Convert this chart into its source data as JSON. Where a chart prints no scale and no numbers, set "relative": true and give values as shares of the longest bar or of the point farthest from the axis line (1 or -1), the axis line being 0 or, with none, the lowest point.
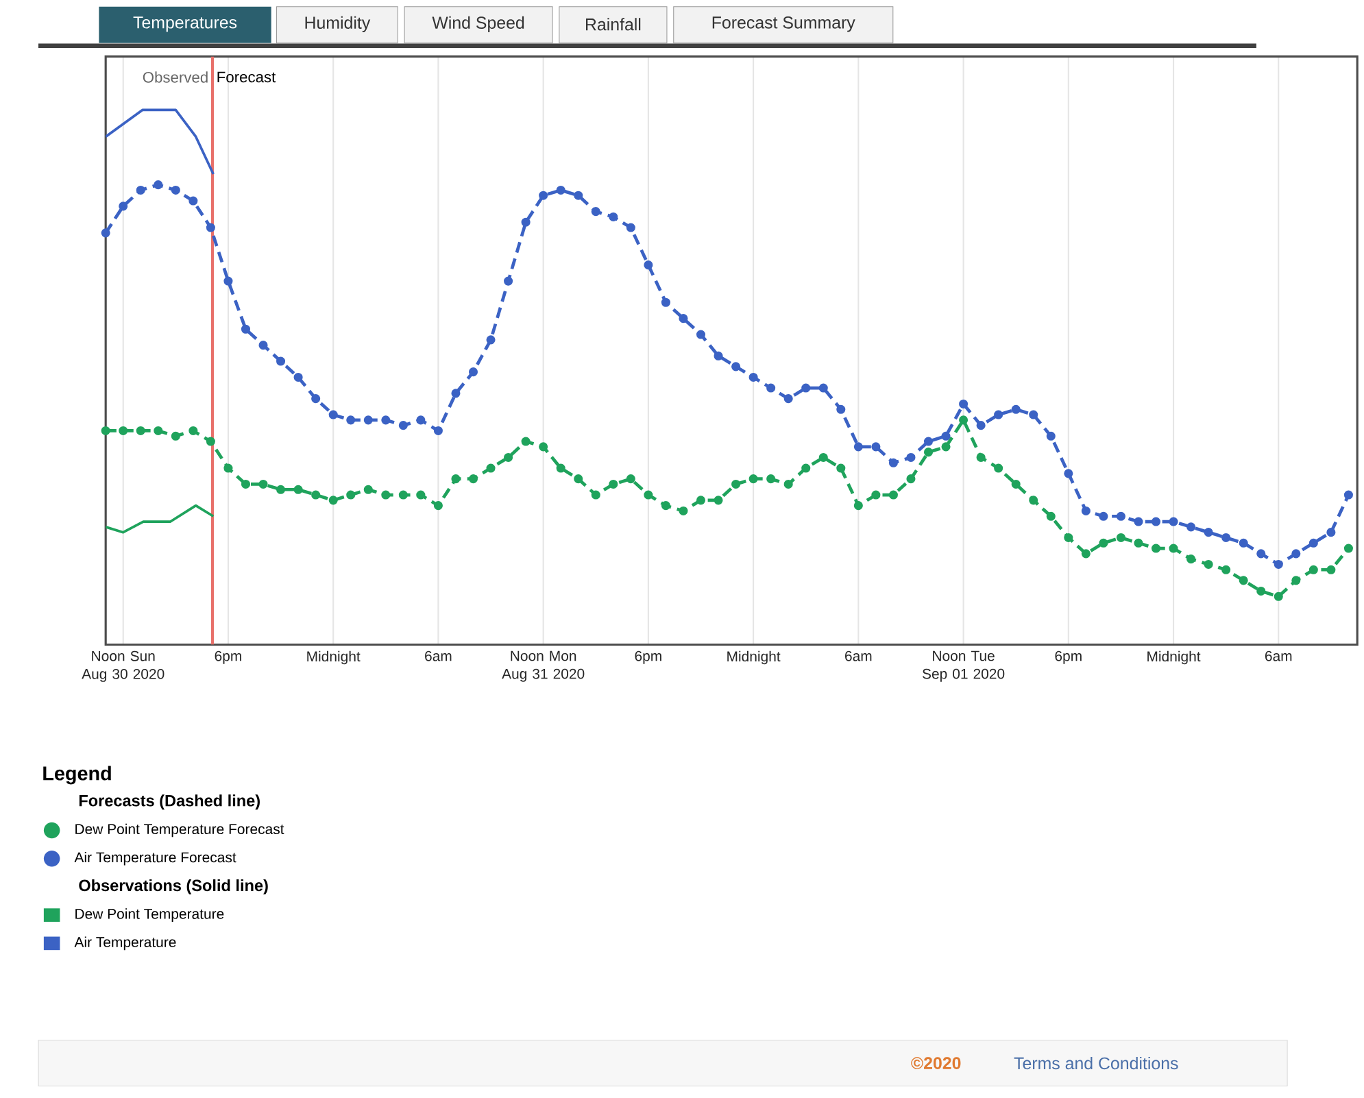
{
  "chart_data": {
    "type": "line",
    "relative": true,
    "x": [
      "2020-08-30T11:00",
      "2020-08-30T12:00",
      "2020-08-30T13:00",
      "2020-08-30T14:00",
      "2020-08-30T15:00",
      "2020-08-30T16:00",
      "2020-08-30T17:00",
      "2020-08-30T18:00",
      "2020-08-30T19:00",
      "2020-08-30T20:00",
      "2020-08-30T21:00",
      "2020-08-30T22:00",
      "2020-08-30T23:00",
      "2020-08-31T00:00",
      "2020-08-31T01:00",
      "2020-08-31T02:00",
      "2020-08-31T03:00",
      "2020-08-31T04:00",
      "2020-08-31T05:00",
      "2020-08-31T06:00",
      "2020-08-31T07:00",
      "2020-08-31T08:00",
      "2020-08-31T09:00",
      "2020-08-31T10:00",
      "2020-08-31T11:00",
      "2020-08-31T12:00",
      "2020-08-31T13:00",
      "2020-08-31T14:00",
      "2020-08-31T15:00",
      "2020-08-31T16:00",
      "2020-08-31T17:00",
      "2020-08-31T18:00",
      "2020-08-31T19:00",
      "2020-08-31T20:00",
      "2020-08-31T21:00",
      "2020-08-31T22:00",
      "2020-08-31T23:00",
      "2020-09-01T00:00",
      "2020-09-01T01:00",
      "2020-09-01T02:00",
      "2020-09-01T03:00",
      "2020-09-01T04:00",
      "2020-09-01T05:00",
      "2020-09-01T06:00",
      "2020-09-01T07:00",
      "2020-09-01T08:00",
      "2020-09-01T09:00",
      "2020-09-01T10:00",
      "2020-09-01T11:00",
      "2020-09-01T12:00",
      "2020-09-01T13:00",
      "2020-09-01T14:00",
      "2020-09-01T15:00",
      "2020-09-01T16:00",
      "2020-09-01T17:00",
      "2020-09-01T18:00",
      "2020-09-01T19:00",
      "2020-09-01T20:00",
      "2020-09-01T21:00",
      "2020-09-01T22:00",
      "2020-09-01T23:00",
      "2020-09-02T00:00",
      "2020-09-02T01:00",
      "2020-09-02T02:00",
      "2020-09-02T03:00",
      "2020-09-02T04:00",
      "2020-09-02T05:00",
      "2020-09-02T06:00",
      "2020-09-02T07:00",
      "2020-09-02T08:00",
      "2020-09-02T09:00",
      "2020-09-02T10:00"
    ],
    "xlim": [
      "2020-08-30T11:00",
      "2020-09-02T10:30"
    ],
    "xticks": [
      {
        "value": "2020-08-30T12:00",
        "label": "Noon Sun Aug 30 2020"
      },
      {
        "value": "2020-08-30T18:00",
        "label": "6pm"
      },
      {
        "value": "2020-08-31T00:00",
        "label": "Midnight"
      },
      {
        "value": "2020-08-31T06:00",
        "label": "6am"
      },
      {
        "value": "2020-08-31T12:00",
        "label": "Noon Mon Aug 31 2020"
      },
      {
        "value": "2020-08-31T18:00",
        "label": "6pm"
      },
      {
        "value": "2020-09-01T00:00",
        "label": "Midnight"
      },
      {
        "value": "2020-09-01T06:00",
        "label": "6am"
      },
      {
        "value": "2020-09-01T12:00",
        "label": "Noon Tue Sep 01 2020"
      },
      {
        "value": "2020-09-01T18:00",
        "label": "6pm"
      },
      {
        "value": "2020-09-02T00:00",
        "label": "Midnight"
      },
      {
        "value": "2020-09-02T06:00",
        "label": "6am"
      }
    ],
    "grid": "x",
    "legend": "bottom left",
    "legend_title": "Legend",
    "series": [
      {
        "name": "Dew Point Temperature Forecast",
        "color": "#1fa35c",
        "line_style": "dashed",
        "marker": "circle",
        "values": [
          0.4,
          0.4,
          0.4,
          0.4,
          0.39,
          0.4,
          0.38,
          0.33,
          0.3,
          0.3,
          0.29,
          0.29,
          0.28,
          0.27,
          0.28,
          0.29,
          0.28,
          0.28,
          0.28,
          0.26,
          0.31,
          0.31,
          0.33,
          0.35,
          0.38,
          0.37,
          0.33,
          0.31,
          0.28,
          0.3,
          0.31,
          0.28,
          0.26,
          0.25,
          0.27,
          0.27,
          0.3,
          0.31,
          0.31,
          0.3,
          0.33,
          0.35,
          0.33,
          0.26,
          0.28,
          0.28,
          0.31,
          0.36,
          0.37,
          0.42,
          0.35,
          0.33,
          0.3,
          0.27,
          0.24,
          0.2,
          0.17,
          0.19,
          0.2,
          0.19,
          0.18,
          0.18,
          0.16,
          0.15,
          0.14,
          0.12,
          0.1,
          0.09,
          0.12,
          0.14,
          0.14,
          0.18
        ]
      },
      {
        "name": "Air Temperature Forecast",
        "color": "#3b62c4",
        "line_style": "dashed",
        "marker": "circle",
        "values": [
          0.77,
          0.82,
          0.85,
          0.86,
          0.85,
          0.83,
          0.78,
          0.68,
          0.59,
          0.56,
          0.53,
          0.5,
          0.46,
          0.43,
          0.42,
          0.42,
          0.42,
          0.41,
          0.42,
          0.4,
          0.47,
          0.51,
          0.57,
          0.68,
          0.79,
          0.84,
          0.85,
          0.84,
          0.81,
          0.8,
          0.78,
          0.71,
          0.64,
          0.61,
          0.58,
          0.54,
          0.52,
          0.5,
          0.48,
          0.46,
          0.48,
          0.48,
          0.44,
          0.37,
          0.37,
          0.34,
          0.35,
          0.38,
          0.39,
          0.45,
          0.41,
          0.43,
          0.44,
          0.43,
          0.39,
          0.32,
          0.25,
          0.24,
          0.24,
          0.23,
          0.23,
          0.23,
          0.22,
          0.21,
          0.2,
          0.19,
          0.17,
          0.15,
          0.17,
          0.19,
          0.21,
          0.28
        ]
      },
      {
        "name": "Dew Point Temperature",
        "color": "#1fa35c",
        "line_style": "solid",
        "marker": "none",
        "x": [
          "2020-08-30T11:00",
          "2020-08-30T12:00",
          "2020-08-30T13:09",
          "2020-08-30T14:42",
          "2020-08-30T16:09",
          "2020-08-30T17:09"
        ],
        "values": [
          0.22,
          0.21,
          0.23,
          0.23,
          0.26,
          0.24
        ]
      },
      {
        "name": "Air Temperature",
        "color": "#3b62c4",
        "line_style": "solid",
        "marker": "none",
        "x": [
          "2020-08-30T11:00",
          "2020-08-30T13:06",
          "2020-08-30T15:00",
          "2020-08-30T16:09",
          "2020-08-30T17:09"
        ],
        "values": [
          0.95,
          1,
          1,
          0.95,
          0.88
        ]
      }
    ],
    "ref_lines": [
      {
        "axis": "x",
        "value": "2020-08-30T17:06",
        "color": "#e8706a"
      }
    ],
    "annotations": [
      "Observed",
      "Forecast",
      "Forecasts (Dashed line)",
      "Observations (Solid line)",
      "Temperatures",
      "Humidity",
      "Wind Speed",
      "Rainfall",
      "Forecast Summary",
      "©2020",
      "Terms and Conditions"
    ]
  }
}
